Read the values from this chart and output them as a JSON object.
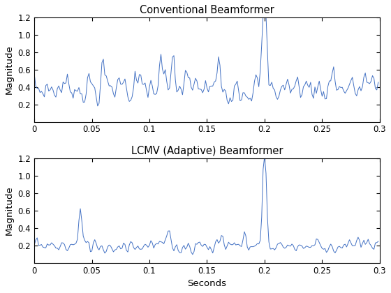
{
  "title1": "Conventional Beamformer",
  "title2": "LCMV (Adaptive) Beamformer",
  "ylabel": "Magnitude",
  "xlabel": "Seconds",
  "xlim": [
    0,
    0.3
  ],
  "ylim1": [
    0,
    1.2
  ],
  "ylim2": [
    0,
    1.2
  ],
  "xticks": [
    0,
    0.05,
    0.1,
    0.15,
    0.2,
    0.25,
    0.3
  ],
  "yticks": [
    0.2,
    0.4,
    0.6,
    0.8,
    1.0,
    1.2
  ],
  "line_color": "#4472C4",
  "line_width": 0.7,
  "fs": 800,
  "duration": 0.3,
  "spike_time": 0.2,
  "spike_amp1": 1.22,
  "spike_amp2": 1.18,
  "noise_mean1": 0.38,
  "noise_mean2": 0.19,
  "background_color": "#ffffff",
  "seed": 7,
  "title_fontsize": 10.5,
  "label_fontsize": 9.5,
  "tick_fontsize": 8.5
}
